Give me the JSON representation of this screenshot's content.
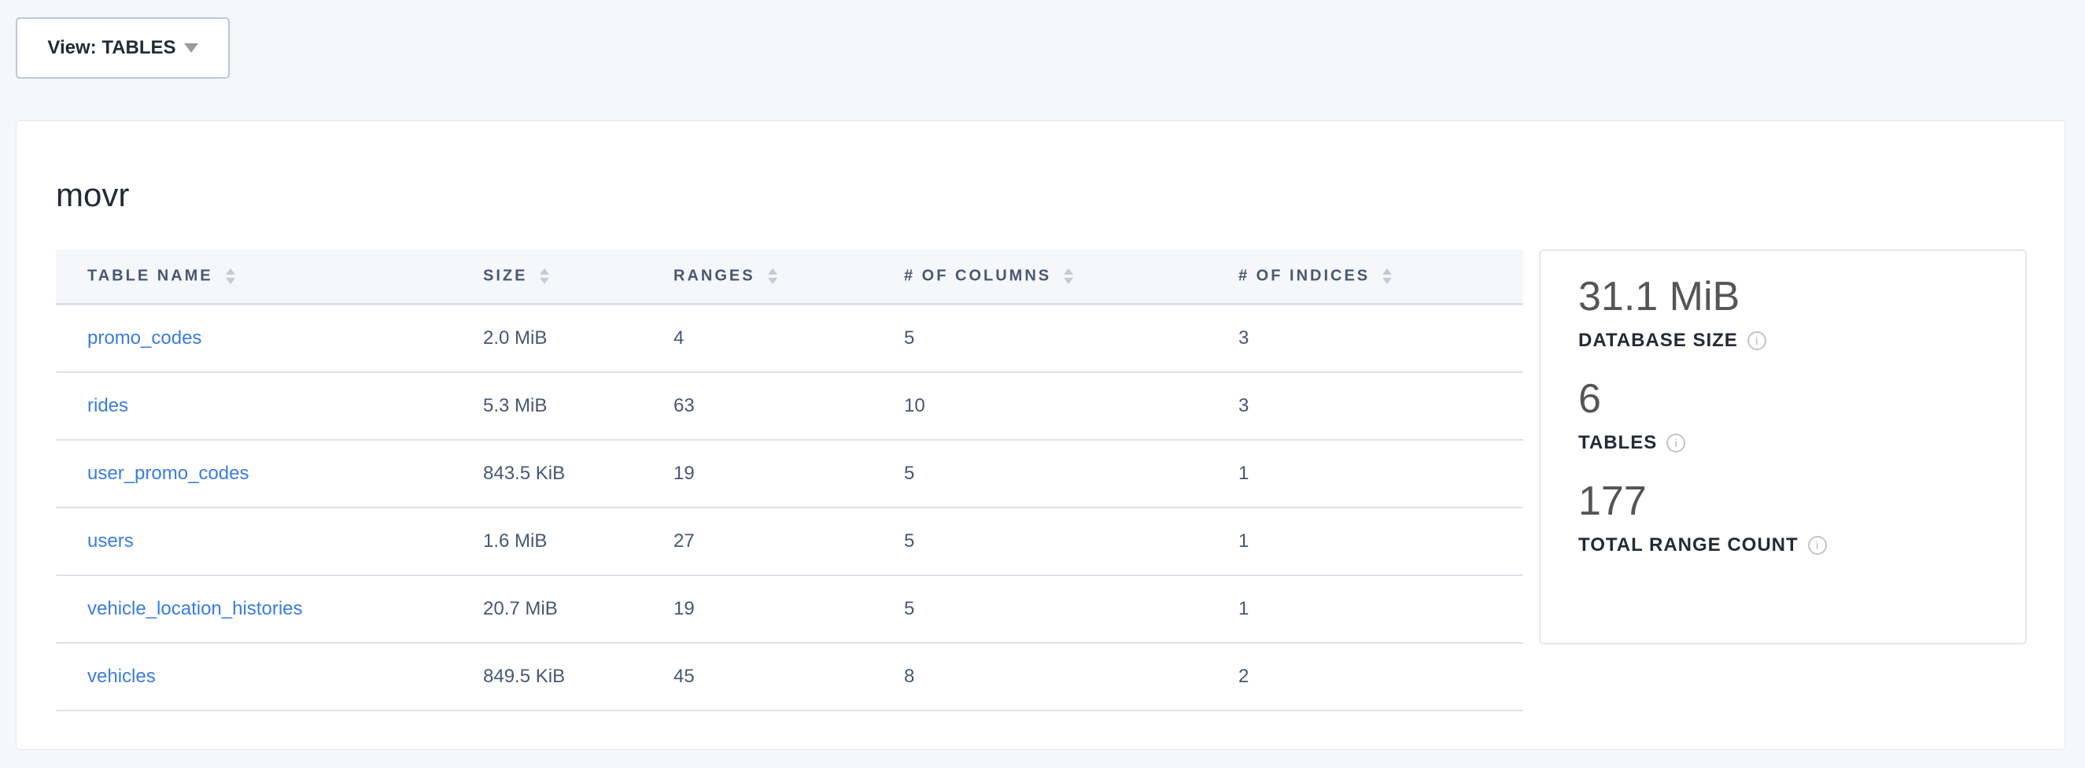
{
  "view_selector": {
    "label": "View: TABLES",
    "icon": "caret-down-icon"
  },
  "database": {
    "name": "movr"
  },
  "table": {
    "columns": [
      "TABLE NAME",
      "SIZE",
      "RANGES",
      "# OF COLUMNS",
      "# OF INDICES"
    ],
    "rows": [
      {
        "name": "promo_codes",
        "size": "2.0 MiB",
        "ranges": "4",
        "columns": "5",
        "indices": "3"
      },
      {
        "name": "rides",
        "size": "5.3 MiB",
        "ranges": "63",
        "columns": "10",
        "indices": "3"
      },
      {
        "name": "user_promo_codes",
        "size": "843.5 KiB",
        "ranges": "19",
        "columns": "5",
        "indices": "1"
      },
      {
        "name": "users",
        "size": "1.6 MiB",
        "ranges": "27",
        "columns": "5",
        "indices": "1"
      },
      {
        "name": "vehicle_location_histories",
        "size": "20.7 MiB",
        "ranges": "19",
        "columns": "5",
        "indices": "1"
      },
      {
        "name": "vehicles",
        "size": "849.5 KiB",
        "ranges": "45",
        "columns": "8",
        "indices": "2"
      }
    ]
  },
  "stats": [
    {
      "value": "31.1 MiB",
      "label": "DATABASE SIZE"
    },
    {
      "value": "6",
      "label": "TABLES"
    },
    {
      "value": "177",
      "label": "TOTAL RANGE COUNT"
    }
  ],
  "colors": {
    "link": "#3a7de1",
    "header_bg": "#f5f7fa",
    "page_bg": "#f5f7fa"
  }
}
